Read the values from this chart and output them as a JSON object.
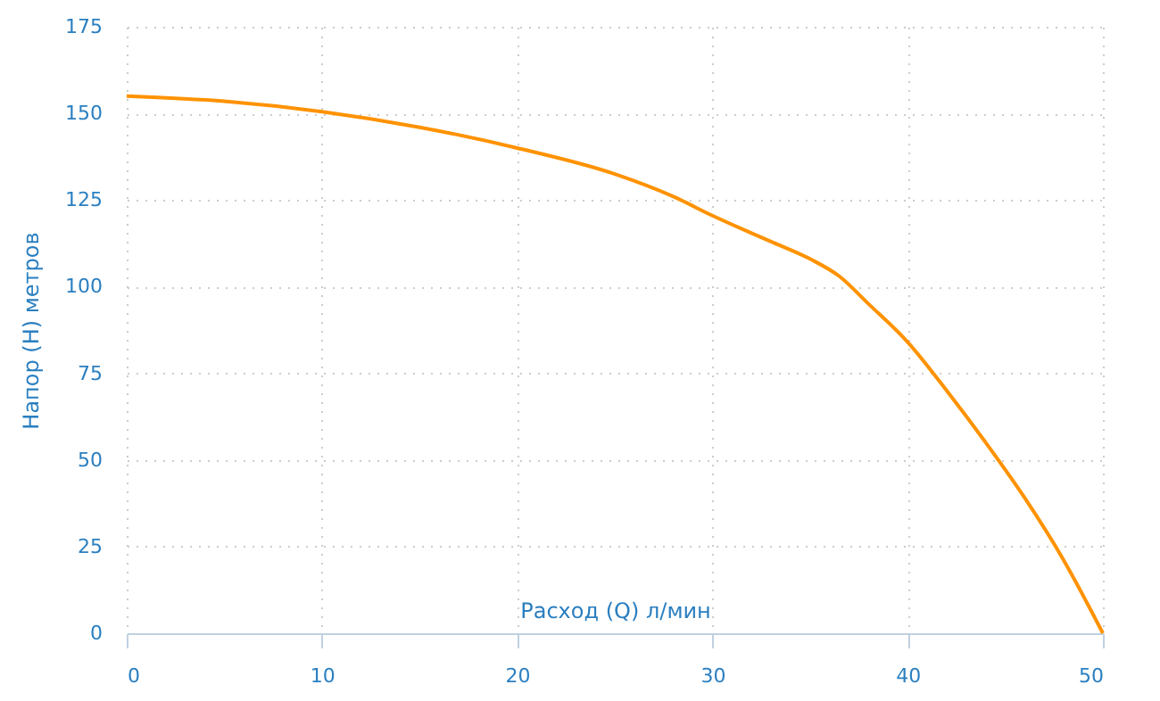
{
  "chart_data": {
    "type": "line",
    "xlabel": "Расход (Q) л/мин",
    "ylabel": "Напор (H) метров",
    "x": [
      0,
      5,
      10,
      15,
      20,
      25,
      28,
      30,
      33,
      35,
      36.5,
      38,
      40,
      42,
      44,
      46,
      48,
      50
    ],
    "series": [
      {
        "color": "#ff9200",
        "values": [
          155,
          153.5,
          150.5,
          146,
          140,
          132.5,
          126,
          120.5,
          113,
          108,
          103,
          95,
          84,
          70,
          55,
          39,
          21,
          0
        ]
      }
    ],
    "xlim": [
      0,
      50
    ],
    "xticks": [
      0,
      10,
      20,
      30,
      40,
      50
    ],
    "ylim": [
      0,
      175
    ],
    "yticks": [
      0,
      25,
      50,
      75,
      100,
      125,
      150,
      175
    ],
    "grid": true,
    "marker": "none",
    "line_style": "solid"
  }
}
